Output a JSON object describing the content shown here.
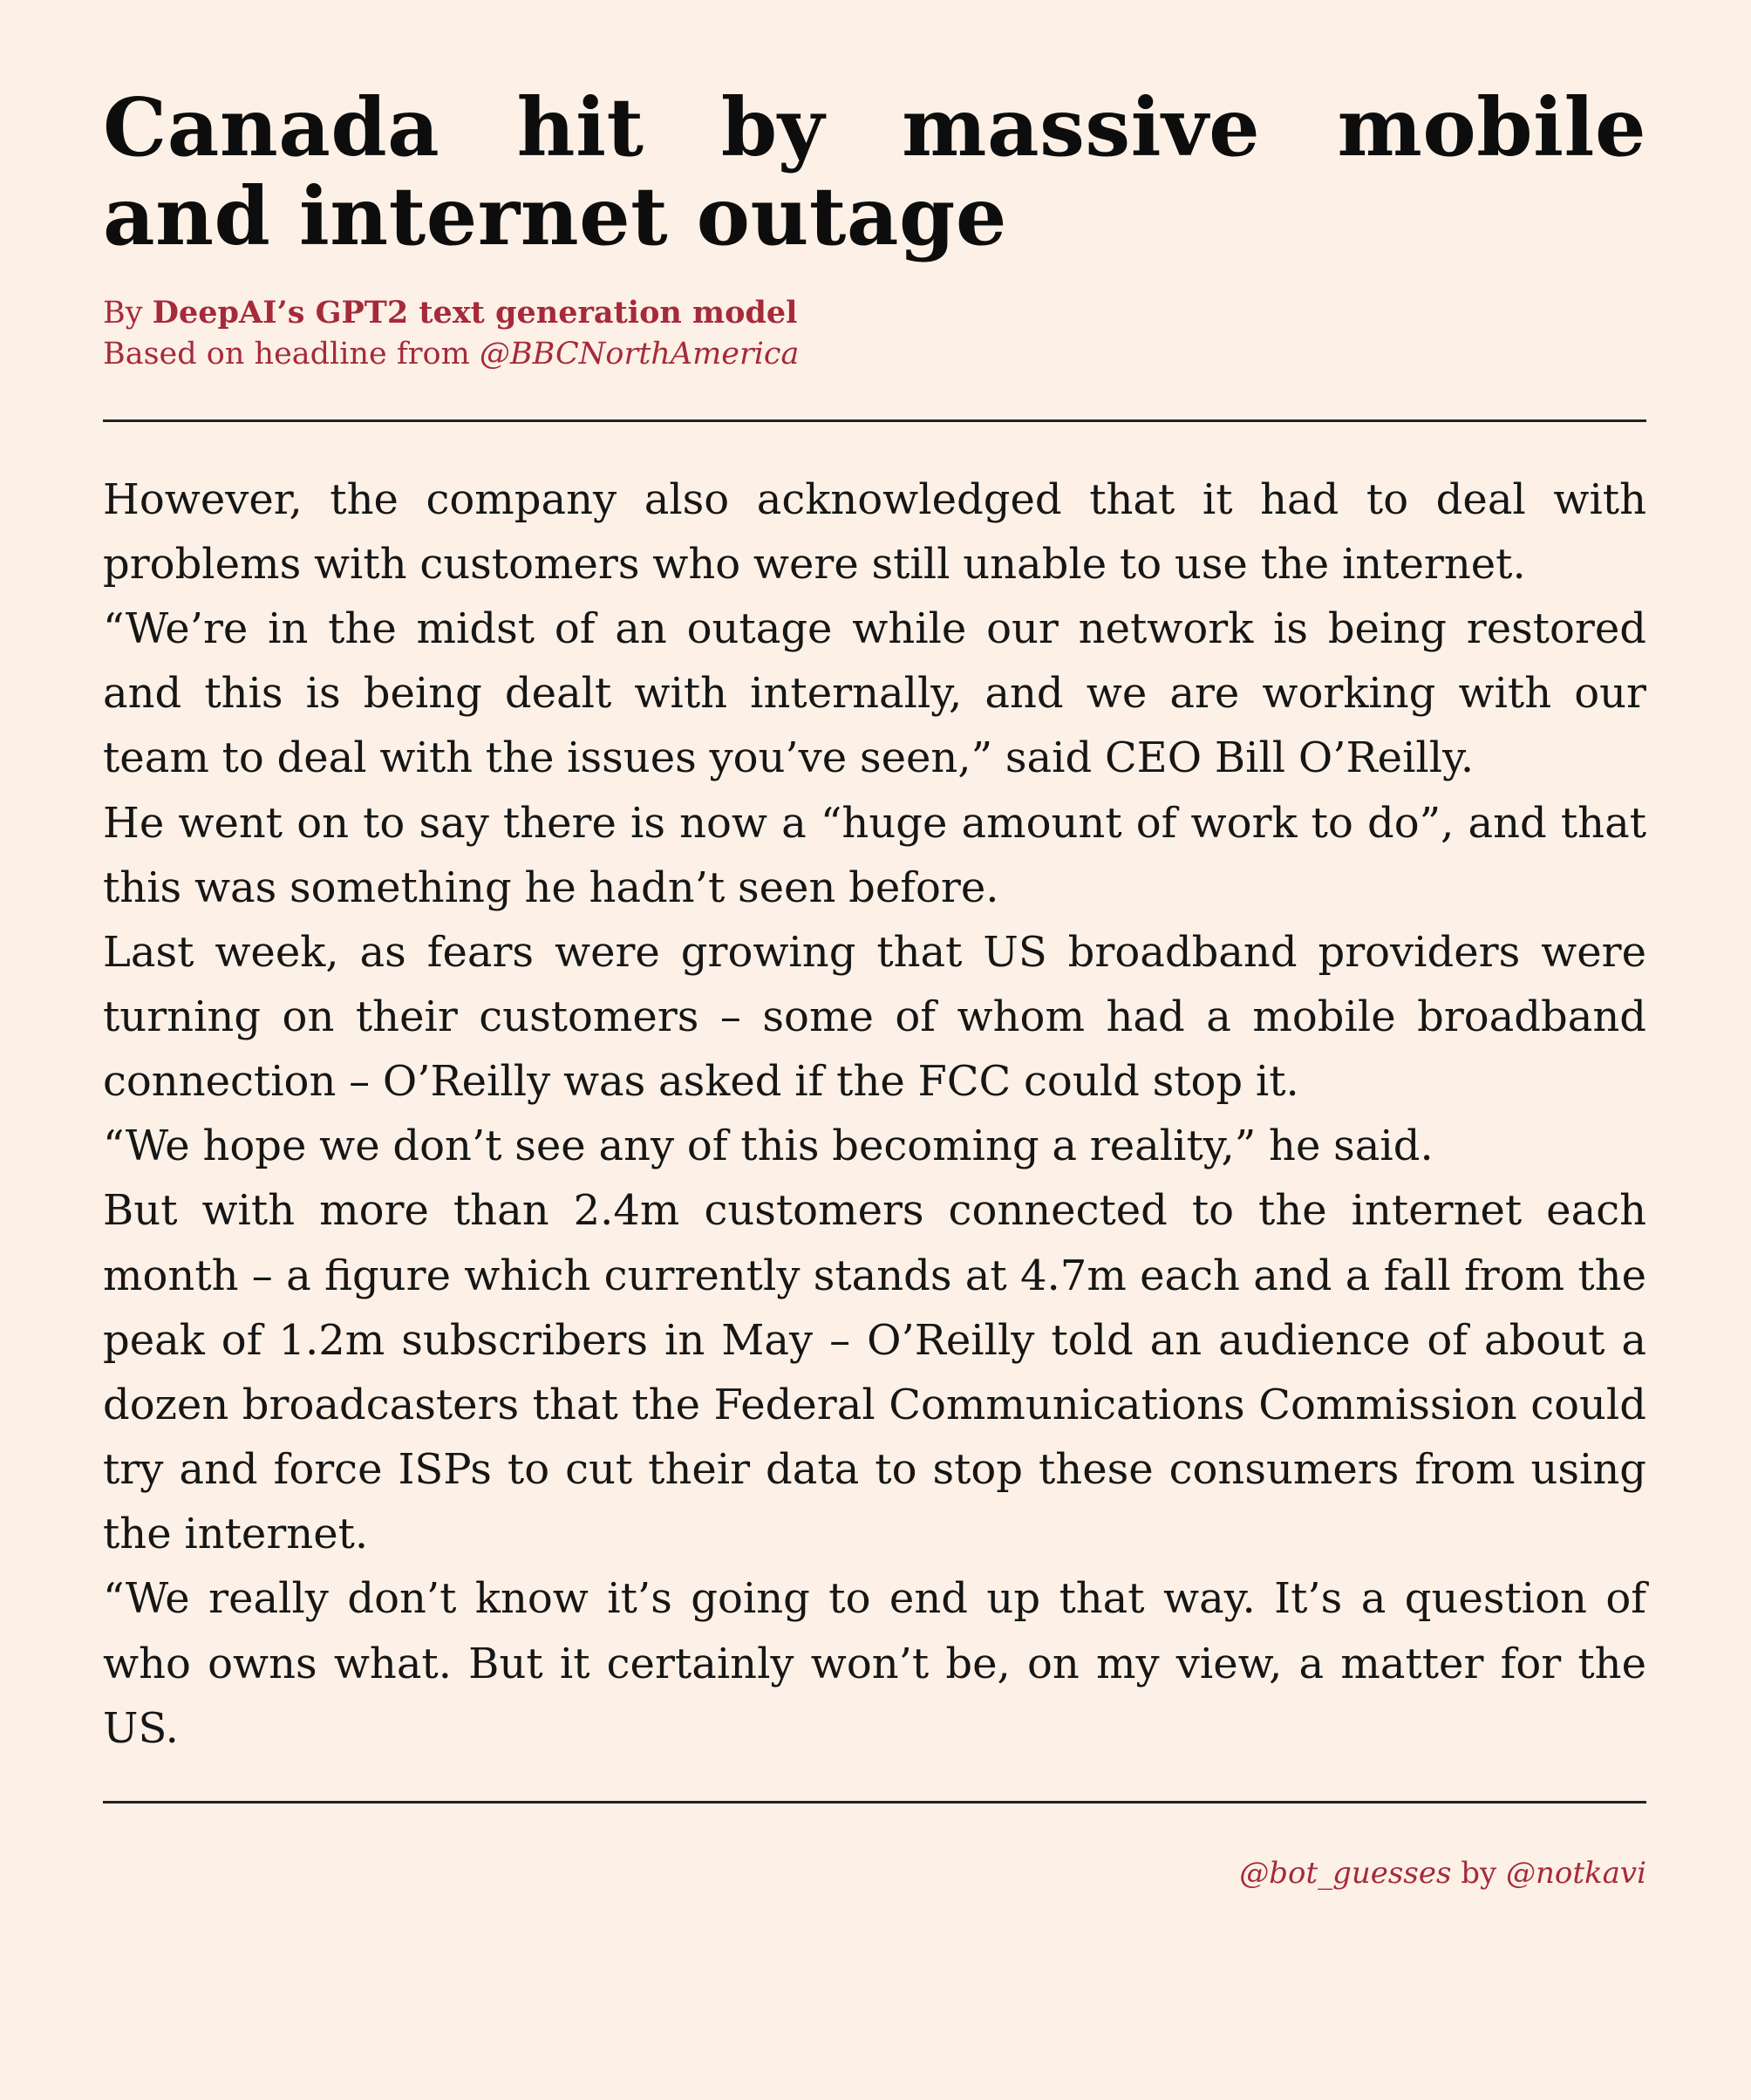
{
  "article": {
    "title": "Canada hit by massive mobile and internet outage",
    "byline": {
      "prefix": "By ",
      "author": "DeepAI’s GPT2 text generation model",
      "source_prefix": "Based on headline from ",
      "source_handle": "@BBCNorthAmerica"
    },
    "paragraphs": [
      "However, the company also acknowledged that it had to deal with problems with customers who were still unable to use the internet.",
      "“We’re in the midst of an outage while our network is being restored and this is being dealt with internally, and we are working with our team to deal with the issues you’ve seen,” said CEO Bill O’Reilly.",
      "He went on to say there is now a “huge amount of work to do”, and that this was something he hadn’t seen before.",
      "Last week, as fears were growing that US broadband providers were turning on their customers – some of whom had a mobile broadband connection – O’Reilly was asked if the FCC could stop it.",
      "“We hope we don’t see any of this becoming a reality,” he said.",
      "But with more than 2.4m customers connected to the internet each month – a figure which currently stands at 4.7m each and a fall from the peak of 1.2m subscribers in May – O’Reilly told an audience of about a dozen broadcasters that the Federal Communications Com­mission could try and force ISPs to cut their data to stop these con­sumers from using the internet.",
      "“We really don’t know it’s going to end up that way.  It’s a question of who owns what.  But it certainly won’t be, on my view, a matter for the US."
    ]
  },
  "footer": {
    "bot_handle": "@bot_guesses",
    "by_text": " by ",
    "author_handle": "@notkavi"
  },
  "colors": {
    "background": "#fdf1e7",
    "accent": "#a62a3a",
    "text": "#161616"
  }
}
